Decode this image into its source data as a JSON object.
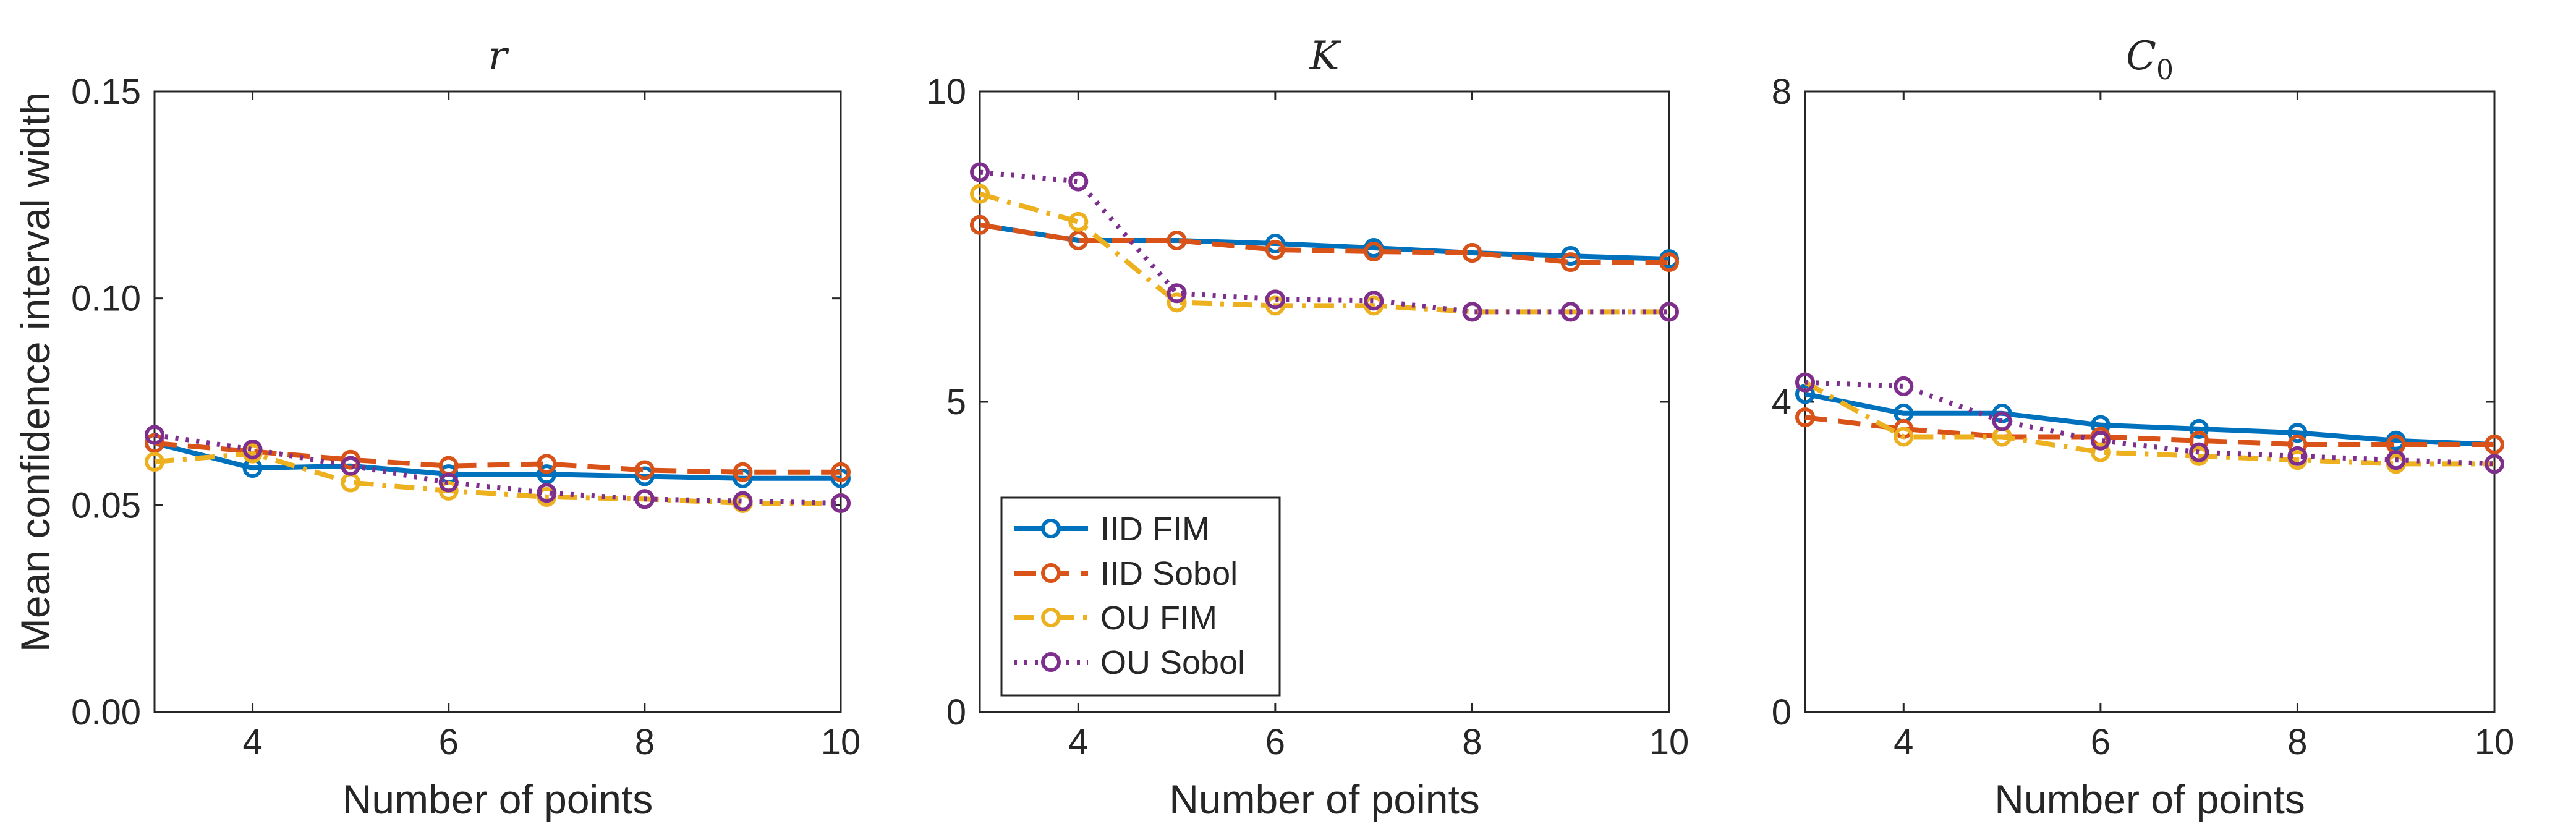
{
  "figure": {
    "ylabel": "Mean confidence interval width",
    "legend": {
      "placement": "lower-left of middle panel",
      "entries": [
        "IID FIM",
        "IID Sobol",
        "OU FIM",
        "OU Sobol"
      ]
    },
    "styles": [
      {
        "color": "#0072BD",
        "dash": "solid"
      },
      {
        "color": "#D95319",
        "dash": "dashed"
      },
      {
        "color": "#EDB120",
        "dash": "dashdot"
      },
      {
        "color": "#7E2F8E",
        "dash": "dotted"
      }
    ]
  },
  "chart_data": [
    {
      "type": "line",
      "title": "r",
      "title_sub": "",
      "xlabel": "Number of points",
      "ylabel": "Mean confidence interval width",
      "xlim": [
        3,
        10
      ],
      "ylim": [
        0,
        0.15
      ],
      "xticks": [
        4,
        6,
        8,
        10
      ],
      "yticks": [
        0,
        0.05,
        0.1,
        0.15
      ],
      "ytick_labels": [
        "0.00",
        "0.05",
        "0.10",
        "0.15"
      ],
      "x": [
        3,
        4,
        5,
        6,
        7,
        8,
        9,
        10
      ],
      "series": [
        {
          "name": "IID FIM",
          "values": [
            0.065,
            0.059,
            0.0595,
            0.0575,
            0.0575,
            0.057,
            0.0565,
            0.0565
          ]
        },
        {
          "name": "IID Sobol",
          "values": [
            0.065,
            0.063,
            0.061,
            0.0595,
            0.06,
            0.0585,
            0.058,
            0.058
          ]
        },
        {
          "name": "OU FIM",
          "values": [
            0.0605,
            0.0625,
            0.0555,
            0.0535,
            0.052,
            0.0515,
            0.0505,
            0.0505
          ]
        },
        {
          "name": "OU Sobol",
          "values": [
            0.067,
            0.0635,
            0.0595,
            0.0555,
            0.053,
            0.0515,
            0.051,
            0.0505
          ]
        }
      ]
    },
    {
      "type": "line",
      "title": "K",
      "title_sub": "",
      "xlabel": "Number of points",
      "ylabel": "",
      "xlim": [
        3,
        10
      ],
      "ylim": [
        0,
        10
      ],
      "xticks": [
        4,
        6,
        8,
        10
      ],
      "yticks": [
        0,
        5,
        10
      ],
      "ytick_labels": [
        "0",
        "5",
        "10"
      ],
      "x": [
        3,
        4,
        5,
        6,
        7,
        8,
        9,
        10
      ],
      "series": [
        {
          "name": "IID FIM",
          "values": [
            7.85,
            7.6,
            7.6,
            7.55,
            7.48,
            7.4,
            7.35,
            7.3
          ]
        },
        {
          "name": "IID Sobol",
          "values": [
            7.85,
            7.6,
            7.6,
            7.45,
            7.42,
            7.4,
            7.25,
            7.25
          ]
        },
        {
          "name": "OU FIM",
          "values": [
            8.35,
            7.9,
            6.6,
            6.55,
            6.55,
            6.45,
            6.45,
            6.45
          ]
        },
        {
          "name": "OU Sobol",
          "values": [
            8.7,
            8.55,
            6.75,
            6.65,
            6.63,
            6.45,
            6.45,
            6.45
          ]
        }
      ]
    },
    {
      "type": "line",
      "title": "C",
      "title_sub": "0",
      "xlabel": "Number of points",
      "ylabel": "",
      "xlim": [
        3,
        10
      ],
      "ylim": [
        0,
        8
      ],
      "xticks": [
        4,
        6,
        8,
        10
      ],
      "yticks": [
        0,
        4,
        8
      ],
      "ytick_labels": [
        "0",
        "4",
        "8"
      ],
      "x": [
        3,
        4,
        5,
        6,
        7,
        8,
        9,
        10
      ],
      "series": [
        {
          "name": "IID FIM",
          "values": [
            4.1,
            3.85,
            3.85,
            3.7,
            3.65,
            3.6,
            3.5,
            3.45
          ]
        },
        {
          "name": "IID Sobol",
          "values": [
            3.8,
            3.65,
            3.55,
            3.55,
            3.5,
            3.45,
            3.45,
            3.45
          ]
        },
        {
          "name": "OU FIM",
          "values": [
            4.25,
            3.55,
            3.55,
            3.35,
            3.3,
            3.25,
            3.2,
            3.2
          ]
        },
        {
          "name": "OU Sobol",
          "values": [
            4.25,
            4.2,
            3.75,
            3.5,
            3.35,
            3.3,
            3.25,
            3.2
          ]
        }
      ]
    }
  ]
}
